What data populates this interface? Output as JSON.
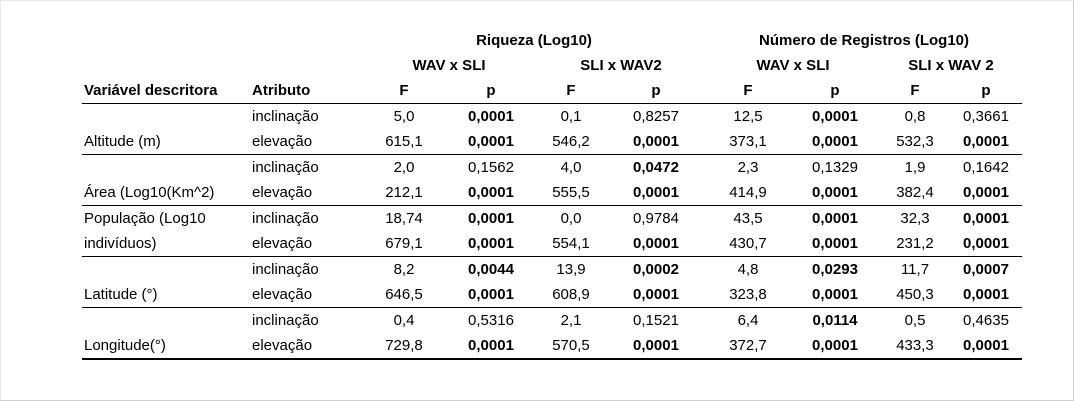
{
  "table": {
    "group_headers": [
      "Riqueza (Log10)",
      "Número de Registros (Log10)"
    ],
    "comparisons": [
      "WAV x SLI",
      "SLI x WAV2",
      "WAV x SLI",
      "SLI x WAV 2"
    ],
    "col_labels": {
      "variable": "Variável descritora",
      "attribute": "Atributo",
      "F": "F",
      "p": "p"
    },
    "rows": [
      {
        "variable": "",
        "attribute": "inclinação",
        "values": [
          "5,0",
          "0,0001",
          "0,1",
          "0,8257",
          "12,5",
          "0,0001",
          "0,8",
          "0,3661"
        ],
        "bold": [
          false,
          true,
          false,
          false,
          false,
          true,
          false,
          false
        ]
      },
      {
        "variable": "Altitude (m)",
        "attribute": "elevação",
        "values": [
          "615,1",
          "0,0001",
          "546,2",
          "0,0001",
          "373,1",
          "0,0001",
          "532,3",
          "0,0001"
        ],
        "bold": [
          false,
          true,
          false,
          true,
          false,
          true,
          false,
          true
        ]
      },
      {
        "variable": "",
        "attribute": "inclinação",
        "values": [
          "2,0",
          "0,1562",
          "4,0",
          "0,0472",
          "2,3",
          "0,1329",
          "1,9",
          "0,1642"
        ],
        "bold": [
          false,
          false,
          false,
          true,
          false,
          false,
          false,
          false
        ]
      },
      {
        "variable": "Área (Log10(Km^2)",
        "attribute": "elevação",
        "values": [
          "212,1",
          "0,0001",
          "555,5",
          "0,0001",
          "414,9",
          "0,0001",
          "382,4",
          "0,0001"
        ],
        "bold": [
          false,
          true,
          false,
          true,
          false,
          true,
          false,
          true
        ]
      },
      {
        "variable": "População (Log10",
        "attribute": "inclinação",
        "values": [
          "18,74",
          "0,0001",
          "0,0",
          "0,9784",
          "43,5",
          "0,0001",
          "32,3",
          "0,0001"
        ],
        "bold": [
          false,
          true,
          false,
          false,
          false,
          true,
          false,
          true
        ]
      },
      {
        "variable": "indivíduos)",
        "attribute": "elevação",
        "values": [
          "679,1",
          "0,0001",
          "554,1",
          "0,0001",
          "430,7",
          "0,0001",
          "231,2",
          "0,0001"
        ],
        "bold": [
          false,
          true,
          false,
          true,
          false,
          true,
          false,
          true
        ]
      },
      {
        "variable": "",
        "attribute": "inclinação",
        "values": [
          "8,2",
          "0,0044",
          "13,9",
          "0,0002",
          "4,8",
          "0,0293",
          "11,7",
          "0,0007"
        ],
        "bold": [
          false,
          true,
          false,
          true,
          false,
          true,
          false,
          true
        ]
      },
      {
        "variable": "Latitude (°)",
        "attribute": "elevação",
        "values": [
          "646,5",
          "0,0001",
          "608,9",
          "0,0001",
          "323,8",
          "0,0001",
          "450,3",
          "0,0001"
        ],
        "bold": [
          false,
          true,
          false,
          true,
          false,
          true,
          false,
          true
        ]
      },
      {
        "variable": "",
        "attribute": "inclinação",
        "values": [
          "0,4",
          "0,5316",
          "2,1",
          "0,1521",
          "6,4",
          "0,0114",
          "0,5",
          "0,4635"
        ],
        "bold": [
          false,
          false,
          false,
          false,
          false,
          true,
          false,
          false
        ]
      },
      {
        "variable": "Longitude(°)",
        "attribute": "elevação",
        "values": [
          "729,8",
          "0,0001",
          "570,5",
          "0,0001",
          "372,7",
          "0,0001",
          "433,3",
          "0,0001"
        ],
        "bold": [
          false,
          true,
          false,
          true,
          false,
          true,
          false,
          true
        ]
      }
    ]
  }
}
